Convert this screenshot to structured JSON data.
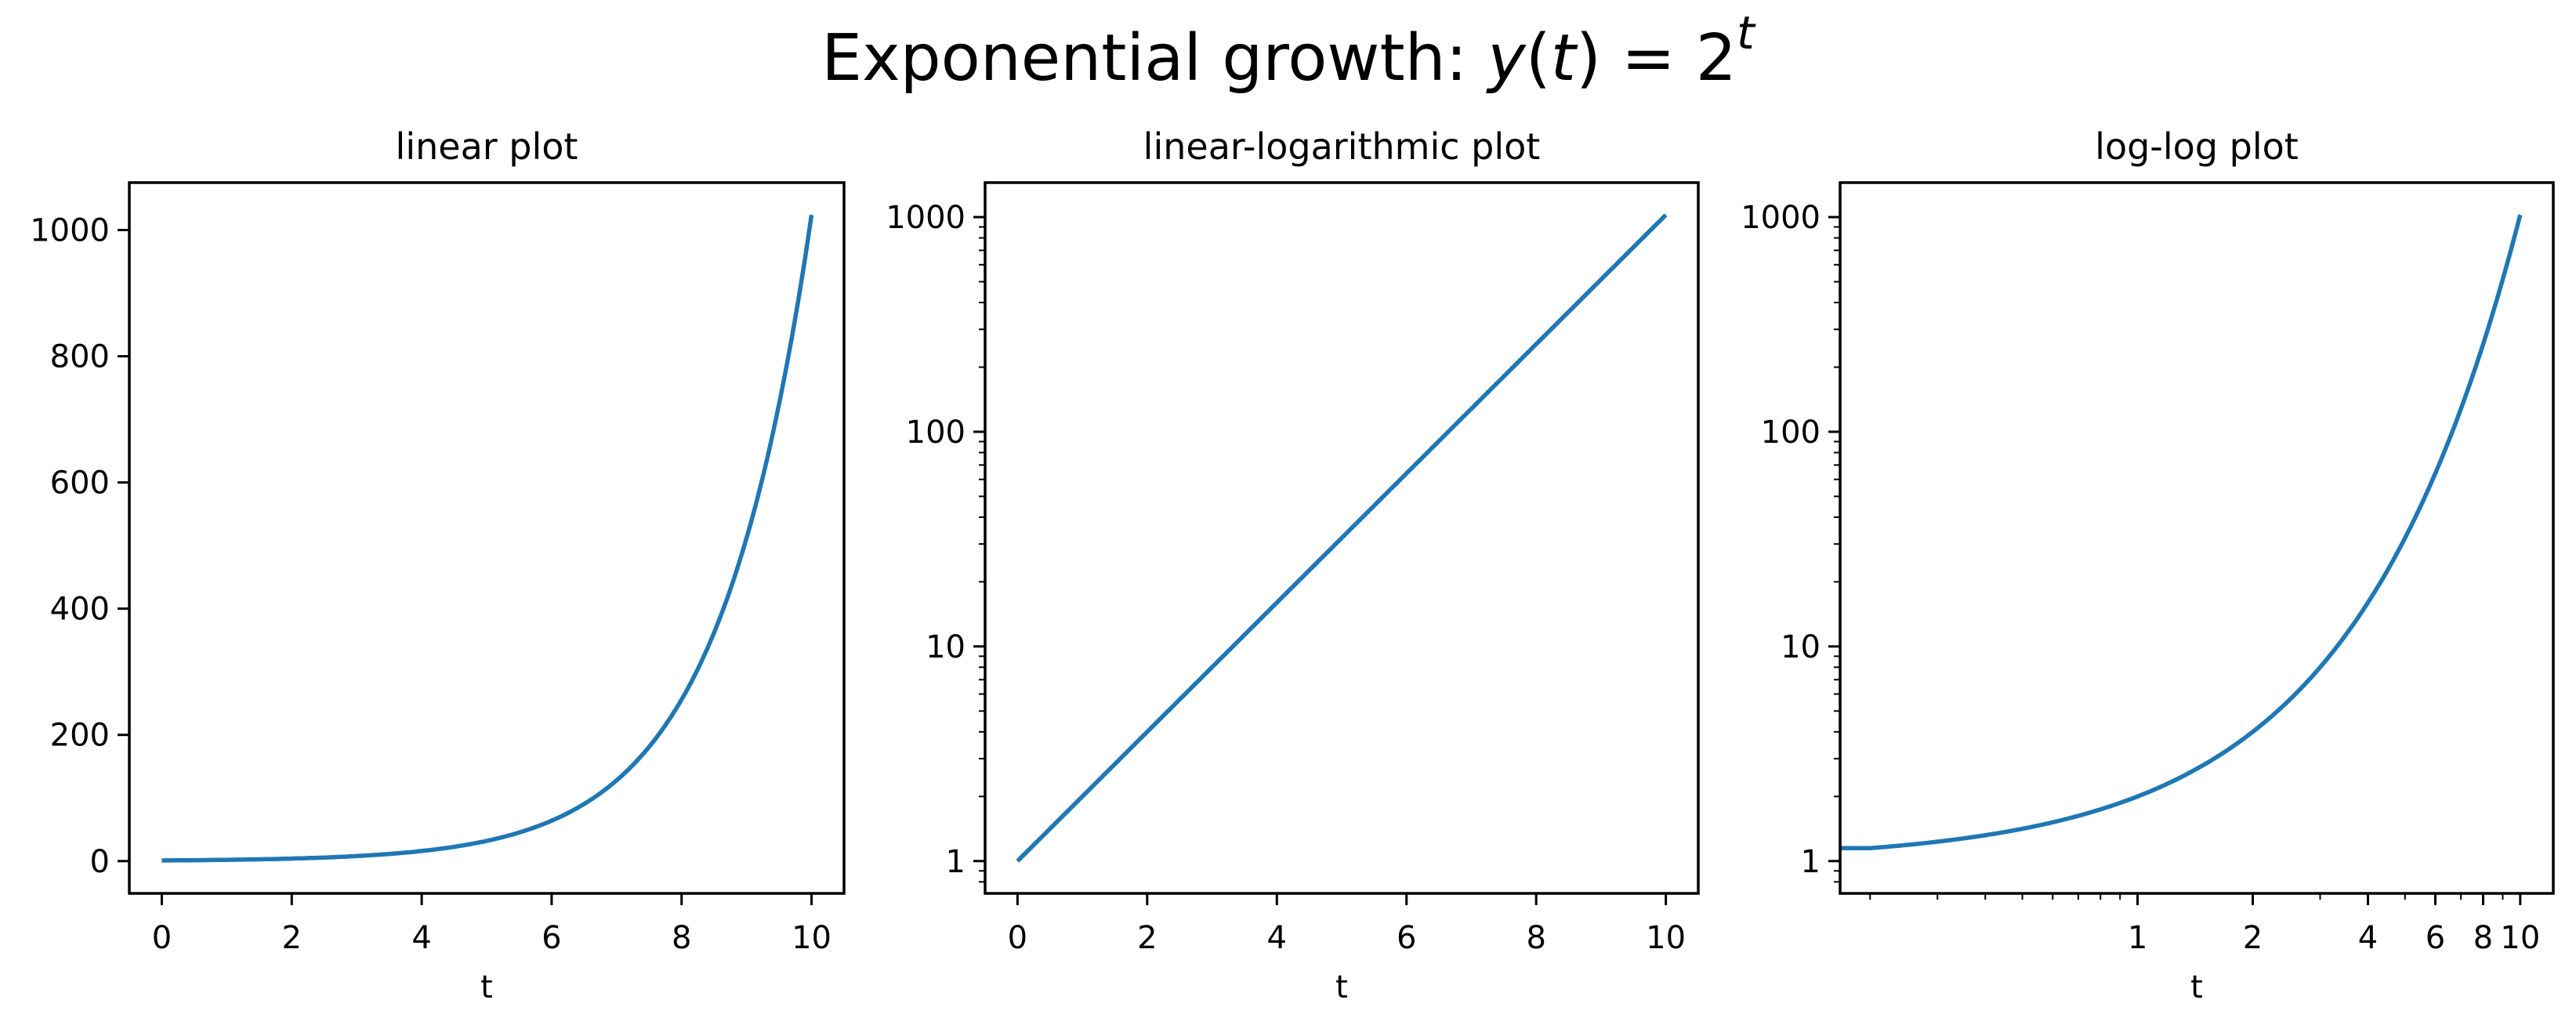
{
  "figure": {
    "suptitle_text": "Exponential growth: ",
    "suptitle_math": {
      "lhs": "y",
      "arg": "t",
      "eq": " = ",
      "base": "2",
      "exp": "t"
    },
    "line_color": "#1f77b4",
    "frame_color": "#000000",
    "background": "#ffffff"
  },
  "chart_data": [
    {
      "type": "line",
      "title": "linear plot",
      "xlabel": "t",
      "ylabel": "",
      "xscale": "linear",
      "yscale": "linear",
      "xlim": [
        -0.5,
        10.5
      ],
      "ylim": [
        -51.2,
        1075.2
      ],
      "xticks": [
        0,
        2,
        4,
        6,
        8,
        10
      ],
      "xtick_labels": [
        "0",
        "2",
        "4",
        "6",
        "8",
        "10"
      ],
      "yticks": [
        0,
        200,
        400,
        600,
        800,
        1000
      ],
      "ytick_labels": [
        "0",
        "200",
        "400",
        "600",
        "800",
        "1000"
      ],
      "grid": false,
      "legend": null,
      "series": [
        {
          "name": "y(t) = 2^t",
          "function": "2^t",
          "x_range": [
            0,
            10
          ],
          "x": [
            0,
            1,
            2,
            3,
            4,
            5,
            6,
            7,
            8,
            9,
            10
          ],
          "values": [
            1,
            2,
            4,
            8,
            16,
            32,
            64,
            128,
            256,
            512,
            1024
          ]
        }
      ]
    },
    {
      "type": "line",
      "title": "linear-logarithmic plot",
      "xlabel": "t",
      "ylabel": "",
      "xscale": "linear",
      "yscale": "log",
      "xlim": [
        -0.5,
        10.5
      ],
      "ylim": [
        0.707,
        1448
      ],
      "xticks": [
        0,
        2,
        4,
        6,
        8,
        10
      ],
      "xtick_labels": [
        "0",
        "2",
        "4",
        "6",
        "8",
        "10"
      ],
      "yticks": [
        1,
        10,
        100,
        1000
      ],
      "ytick_labels": [
        "1",
        "10",
        "100",
        "1000"
      ],
      "grid": false,
      "legend": null,
      "series": [
        {
          "name": "y(t) = 2^t",
          "function": "2^t",
          "x_range": [
            0,
            10
          ],
          "x": [
            0,
            1,
            2,
            3,
            4,
            5,
            6,
            7,
            8,
            9,
            10
          ],
          "values": [
            1,
            2,
            4,
            8,
            16,
            32,
            64,
            128,
            256,
            512,
            1024
          ]
        }
      ]
    },
    {
      "type": "line",
      "title": "log-log plot",
      "xlabel": "t",
      "ylabel": "",
      "xscale": "log",
      "yscale": "log",
      "xlim": [
        0.167,
        12.2
      ],
      "ylim": [
        0.707,
        1448
      ],
      "xticks": [
        1,
        2,
        4,
        6,
        8,
        10
      ],
      "xtick_labels": [
        "1",
        "2",
        "4",
        "6",
        "8",
        "10"
      ],
      "yticks": [
        1,
        10,
        100,
        1000
      ],
      "ytick_labels": [
        "1",
        "10",
        "100",
        "1000"
      ],
      "grid": false,
      "legend": null,
      "series": [
        {
          "name": "y(t) = 2^t",
          "function": "2^t",
          "x_range": [
            0.2,
            10
          ],
          "x": [
            0.2,
            0.5,
            1,
            2,
            3,
            4,
            5,
            6,
            7,
            8,
            9,
            10
          ],
          "values": [
            1.15,
            1.41,
            2,
            4,
            8,
            16,
            32,
            64,
            128,
            256,
            512,
            1024
          ]
        }
      ]
    }
  ]
}
